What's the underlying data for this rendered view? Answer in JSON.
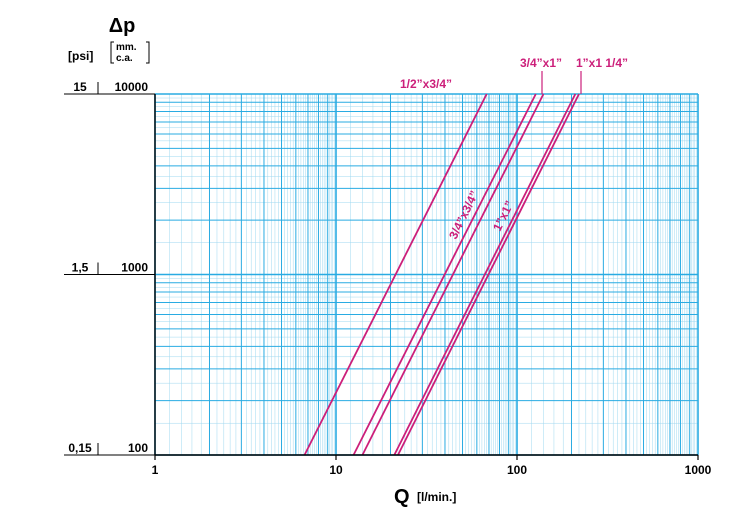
{
  "chart_data": {
    "type": "line",
    "x_scale": "log",
    "y_scale": "log",
    "xlim": [
      1,
      1000
    ],
    "ylim": [
      100,
      10000
    ],
    "grid": true,
    "xlabel": "Q",
    "xlabel_unit": "[l/min.]",
    "ylabel": "Δp",
    "y_units": {
      "psi": "[psi]",
      "mm_a": "mm.",
      "mm_b": "c.a."
    },
    "x_ticks": [
      {
        "value": 1,
        "label": "1"
      },
      {
        "value": 10,
        "label": "10"
      },
      {
        "value": 100,
        "label": "100"
      },
      {
        "value": 1000,
        "label": "1000"
      }
    ],
    "y_ticks": [
      {
        "value": 10000,
        "mm_label": "10000",
        "psi_label": "15"
      },
      {
        "value": 1000,
        "mm_label": "1000",
        "psi_label": "1,5"
      },
      {
        "value": 100,
        "mm_label": "100",
        "psi_label": "0,15"
      }
    ],
    "series": [
      {
        "name": "1/2”x3/4”",
        "x": [
          6.7,
          68
        ],
        "y": [
          100,
          10000
        ]
      },
      {
        "name": "3/4”x3/4”",
        "x": [
          12.5,
          127
        ],
        "y": [
          100,
          10000
        ]
      },
      {
        "name": "3/4”x1”",
        "x": [
          14,
          140
        ],
        "y": [
          100,
          10000
        ]
      },
      {
        "name": "1”x1”",
        "x": [
          21,
          210
        ],
        "y": [
          100,
          10000
        ]
      },
      {
        "name": "1”x1 1/4”",
        "x": [
          22,
          220
        ],
        "y": [
          100,
          10000
        ]
      }
    ]
  },
  "colors": {
    "grid": "#29abe2",
    "grid_minor": "#9fd8f0",
    "series": "#cc1f7a",
    "text": "#000000"
  }
}
